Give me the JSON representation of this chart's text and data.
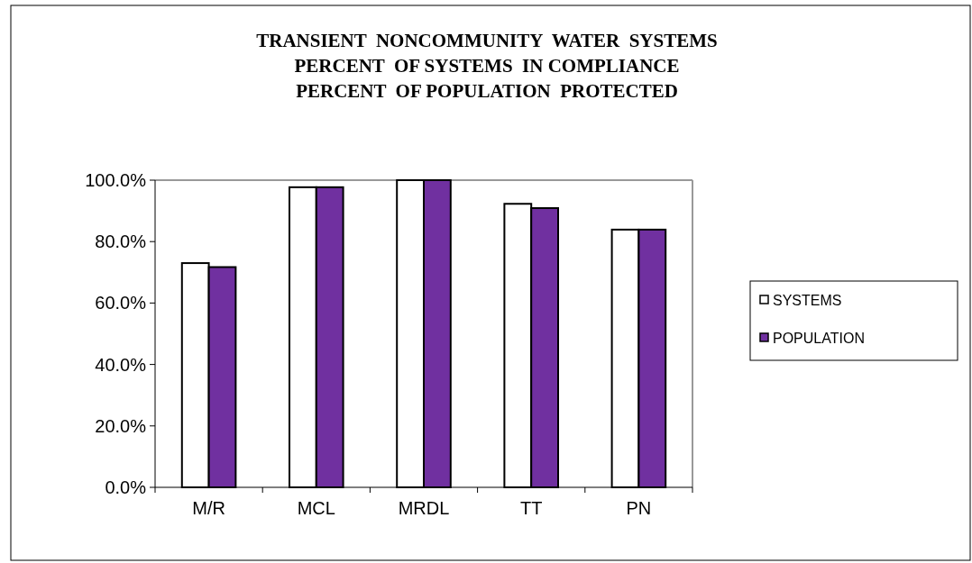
{
  "chart_data": {
    "type": "bar",
    "title": "TRANSIENT  NONCOMMUNITY  WATER  SYSTEMS\nPERCENT  OF SYSTEMS  IN COMPLIANCE\nPERCENT  OF POPULATION  PROTECTED",
    "categories": [
      "M/R",
      "MCL",
      "MRDL",
      "TT",
      "PN"
    ],
    "series": [
      {
        "name": "SYSTEMS",
        "color": "#ffffff",
        "values": [
          73.0,
          97.7,
          100,
          92.3,
          83.9
        ]
      },
      {
        "name": "POPULATION",
        "color": "#7030a0",
        "values": [
          71.7,
          97.7,
          100,
          90.9,
          83.9
        ]
      }
    ],
    "ylim": [
      0,
      100
    ],
    "yticks": [
      {
        "value": 0,
        "label": "0.0%"
      },
      {
        "value": 20,
        "label": "20.0%"
      },
      {
        "value": 40,
        "label": "40.0%"
      },
      {
        "value": 60,
        "label": "60.0%"
      },
      {
        "value": 80,
        "label": "80.0%"
      },
      {
        "value": 100,
        "label": "100.0%"
      }
    ],
    "grid": false,
    "legend": "right"
  }
}
